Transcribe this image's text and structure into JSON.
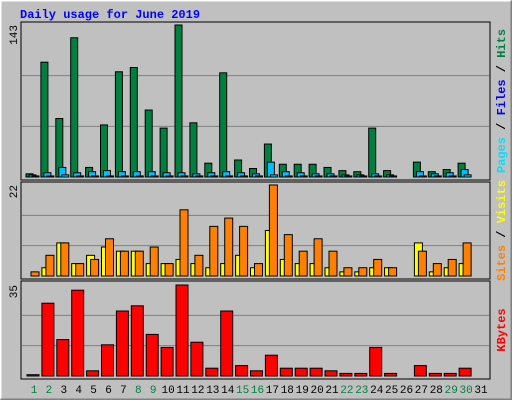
{
  "chart_data": [
    {
      "type": "bar",
      "title": "Daily usage for June 2019",
      "ylim": [
        0,
        143
      ],
      "series": [
        {
          "name": "Hits",
          "color": "#008040",
          "values": [
            3,
            108,
            55,
            131,
            9,
            49,
            99,
            103,
            63,
            46,
            143,
            51,
            13,
            98,
            16,
            8,
            31,
            12,
            12,
            12,
            9,
            6,
            5,
            46,
            6,
            0,
            14,
            5,
            7,
            13,
            null
          ]
        },
        {
          "name": "Files",
          "color": "#0000FF",
          "bar_color": "#00C0FF",
          "values": [
            2,
            4,
            9,
            4,
            5,
            6,
            5,
            5,
            5,
            4,
            4,
            3,
            4,
            5,
            4,
            3,
            14,
            5,
            4,
            3,
            3,
            2,
            2,
            3,
            2,
            0,
            5,
            3,
            4,
            7,
            null
          ]
        },
        {
          "name": "Pages",
          "color": "#00E0FF",
          "values": [
            1,
            1,
            2,
            1,
            1,
            1,
            1,
            1,
            1,
            1,
            1,
            1,
            1,
            1,
            1,
            1,
            2,
            1,
            1,
            1,
            1,
            1,
            1,
            1,
            1,
            0,
            1,
            1,
            1,
            2,
            null
          ]
        }
      ]
    },
    {
      "type": "bar",
      "ylim": [
        0,
        22
      ],
      "series": [
        {
          "name": "Visits",
          "color": "#FFFF00",
          "values": [
            0,
            2,
            8,
            3,
            5,
            7,
            6,
            6,
            3,
            3,
            4,
            3,
            2,
            3,
            5,
            2,
            11,
            4,
            3,
            3,
            2,
            1,
            1,
            2,
            2,
            0,
            8,
            1,
            2,
            3,
            null
          ]
        },
        {
          "name": "Sites",
          "color": "#FF8000",
          "values": [
            1,
            5,
            8,
            3,
            4,
            9,
            6,
            6,
            7,
            3,
            16,
            5,
            12,
            14,
            12,
            3,
            22,
            10,
            6,
            9,
            6,
            2,
            2,
            4,
            2,
            0,
            6,
            3,
            4,
            8,
            null
          ]
        }
      ]
    },
    {
      "type": "bar",
      "ylim": [
        0,
        35
      ],
      "series": [
        {
          "name": "KBytes",
          "color": "#FF0000",
          "values": [
            0.5,
            28,
            14,
            33,
            2,
            12,
            25,
            27,
            16,
            11,
            35,
            13,
            3,
            25,
            4,
            2,
            8,
            3,
            3,
            3,
            2,
            1,
            1,
            11,
            1,
            0,
            4,
            1,
            1,
            3,
            null
          ]
        }
      ],
      "categories": [
        "1",
        "2",
        "3",
        "4",
        "5",
        "6",
        "7",
        "8",
        "9",
        "10",
        "11",
        "12",
        "13",
        "14",
        "15",
        "16",
        "17",
        "18",
        "19",
        "20",
        "21",
        "22",
        "23",
        "24",
        "25",
        "26",
        "27",
        "28",
        "29",
        "30",
        "31"
      ],
      "weekend": [
        0,
        1,
        7,
        8,
        14,
        15,
        21,
        22,
        28,
        29
      ],
      "weekend_color": "#008040"
    }
  ]
}
